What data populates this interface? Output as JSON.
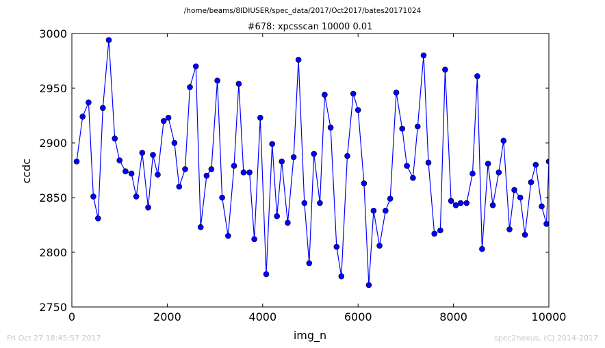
{
  "figure": {
    "suptitle": "/home/beams/8IDIUSER/spec_data/2017/Oct2017/bates20171024",
    "footer_left": "Fri Oct 27 18:45:57 2017",
    "footer_right": "spec2nexus, (C) 2014-2017"
  },
  "colors": {
    "series": "#0000ff",
    "marker_edge": "#000000",
    "axes": "#000000"
  },
  "chart_data": {
    "type": "line",
    "title": "#678: xpcsscan 10000 0.01",
    "xlabel": "img_n",
    "ylabel": "ccdc",
    "xlim": [
      0,
      10000
    ],
    "ylim": [
      2750,
      3000
    ],
    "xticks": [
      0,
      2000,
      4000,
      6000,
      8000,
      10000
    ],
    "yticks": [
      2750,
      2800,
      2850,
      2900,
      2950,
      3000
    ],
    "grid": false,
    "marker": "circle",
    "x": [
      100,
      225,
      350,
      450,
      550,
      650,
      775,
      900,
      1000,
      1125,
      1250,
      1350,
      1475,
      1600,
      1700,
      1800,
      1925,
      2025,
      2150,
      2250,
      2375,
      2475,
      2600,
      2700,
      2825,
      2925,
      3050,
      3150,
      3275,
      3400,
      3500,
      3600,
      3725,
      3825,
      3950,
      4075,
      4200,
      4300,
      4400,
      4525,
      4650,
      4750,
      4875,
      4975,
      5075,
      5200,
      5300,
      5425,
      5550,
      5650,
      5775,
      5900,
      6000,
      6125,
      6225,
      6325,
      6450,
      6575,
      6675,
      6800,
      6925,
      7025,
      7150,
      7250,
      7375,
      7475,
      7600,
      7725,
      7825,
      7950,
      8050,
      8150,
      8275,
      8400,
      8500,
      8600,
      8725,
      8825,
      8950,
      9050,
      9175,
      9275,
      9400,
      9500,
      9625,
      9725,
      9850,
      9950,
      10000
    ],
    "y": [
      2883,
      2924,
      2937,
      2851,
      2831,
      2932,
      2994,
      2904,
      2884,
      2874,
      2872,
      2851,
      2891,
      2841,
      2889,
      2871,
      2920,
      2923,
      2900,
      2860,
      2876,
      2951,
      2970,
      2823,
      2870,
      2876,
      2957,
      2850,
      2815,
      2879,
      2954,
      2873,
      2873,
      2812,
      2923,
      2780,
      2899,
      2833,
      2883,
      2827,
      2887,
      2976,
      2845,
      2790,
      2890,
      2845,
      2944,
      2914,
      2805,
      2778,
      2888,
      2945,
      2930,
      2863,
      2770,
      2838,
      2806,
      2838,
      2849,
      2946,
      2913,
      2879,
      2868,
      2915,
      2980,
      2882,
      2817,
      2820,
      2967,
      2847,
      2843,
      2845,
      2845,
      2872,
      2961,
      2803,
      2881,
      2843,
      2873,
      2902,
      2821,
      2857,
      2850,
      2816,
      2864,
      2880,
      2842,
      2826,
      2883
    ]
  }
}
